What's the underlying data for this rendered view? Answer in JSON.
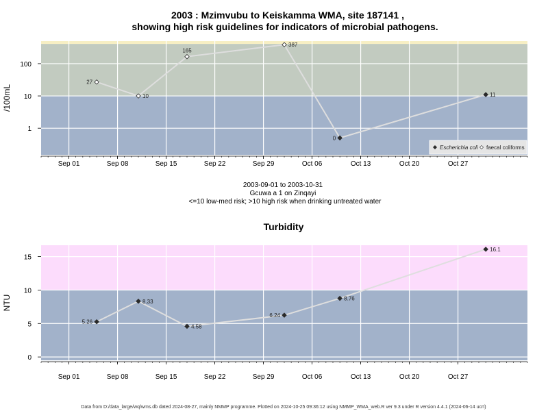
{
  "colors": {
    "low_band": "#a2b2ca",
    "high_band": "#c2cbc0",
    "top_band": "#f7efc4",
    "turb_high_band": "#fcdcfc",
    "grid": "#ffffff",
    "line": "#dedede",
    "point": "#2a2a2a"
  },
  "chart_data": [
    {
      "type": "line",
      "title": "2003 : Mzimvubu to Keiskamma WMA, site 187141 ,",
      "title2": "showing high risk guidelines for indicators of microbial pathogens.",
      "ylabel": "/100mL",
      "y_scale": "log",
      "ylim": [
        0.15,
        500
      ],
      "yticks": [
        1,
        10,
        100
      ],
      "ytick_labels": [
        "1",
        "10",
        "100"
      ],
      "xlim": [
        "2003-08-28",
        "2003-11-06"
      ],
      "xticks": [
        "2003-09-01",
        "2003-09-08",
        "2003-09-15",
        "2003-09-22",
        "2003-09-29",
        "2003-10-06",
        "2003-10-13",
        "2003-10-20",
        "2003-10-27"
      ],
      "xtick_labels": [
        "Sep 01",
        "Sep 08",
        "Sep 15",
        "Sep 22",
        "Sep 29",
        "Oct 06",
        "Oct 13",
        "Oct 20",
        "Oct 27"
      ],
      "bands": [
        {
          "from": 0.15,
          "to": 10,
          "color_key": "low_band"
        },
        {
          "from": 10,
          "to": 410,
          "color_key": "high_band"
        },
        {
          "from": 410,
          "to": 500,
          "color_key": "top_band"
        }
      ],
      "series": [
        {
          "name": "faecal coliforms",
          "marker": "open-diamond",
          "x": [
            "2003-09-05",
            "2003-09-11",
            "2003-09-18",
            "2003-10-02",
            "2003-10-10",
            "2003-10-31"
          ],
          "y": [
            27,
            10,
            165,
            387,
            0.5,
            11
          ],
          "labels": [
            "27",
            "10",
            "165",
            "387",
            "0",
            "11"
          ],
          "label_pos": [
            "left",
            "right",
            "above",
            "right",
            "left",
            "right"
          ],
          "open_points": [
            0,
            1,
            2,
            3
          ]
        }
      ],
      "legend": {
        "position": "bottom-right",
        "items": [
          "Escherichia coli",
          "faecal coliforms"
        ]
      },
      "caption_lines": [
        "2003-09-01 to 2003-10-31",
        "Gcuwa a 1 on Zinqayi",
        "<=10 low-med risk; >10 high risk when drinking untreated water"
      ]
    },
    {
      "type": "line",
      "title": "Turbidity",
      "ylabel": "NTU",
      "ylim": [
        -0.5,
        16.7
      ],
      "yticks": [
        0,
        5,
        10,
        15
      ],
      "ytick_labels": [
        "0",
        "5",
        "10",
        "15"
      ],
      "xlim": [
        "2003-08-28",
        "2003-11-06"
      ],
      "xticks": [
        "2003-09-01",
        "2003-09-08",
        "2003-09-15",
        "2003-09-22",
        "2003-09-29",
        "2003-10-06",
        "2003-10-13",
        "2003-10-20",
        "2003-10-27"
      ],
      "xtick_labels": [
        "Sep 01",
        "Sep 08",
        "Sep 15",
        "Sep 22",
        "Sep 29",
        "Oct 06",
        "Oct 13",
        "Oct 20",
        "Oct 27"
      ],
      "bands": [
        {
          "from": -0.5,
          "to": 10,
          "color_key": "low_band"
        },
        {
          "from": 10,
          "to": 16.7,
          "color_key": "turb_high_band"
        }
      ],
      "series": [
        {
          "x": [
            "2003-09-05",
            "2003-09-11",
            "2003-09-18",
            "2003-10-02",
            "2003-10-10",
            "2003-10-31"
          ],
          "y": [
            5.26,
            8.33,
            4.58,
            6.24,
            8.76,
            16.1
          ],
          "labels": [
            "5.26",
            "8.33",
            "4.58",
            "6.24",
            "8.76",
            "16.1"
          ],
          "label_pos": [
            "left",
            "right",
            "right",
            "left",
            "right",
            "right"
          ]
        }
      ]
    }
  ],
  "footer": "Data from D:/data_large/wq/wms.db dated 2024-08-27, mainly NMMP programme. Plotted on 2024-10-25 09:36:12 using NMMP_WMA_web.R ver 9.3 under R version 4.4.1 (2024-06-14 ucrt)"
}
